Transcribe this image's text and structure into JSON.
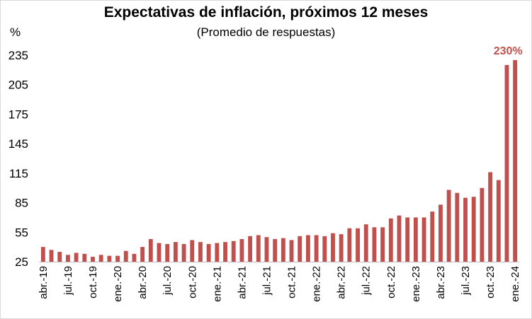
{
  "chart_data": {
    "type": "bar",
    "title": "Expectativas de inflación, próximos 12 meses",
    "subtitle": "(Promedio de respuestas)",
    "ylabel": "%",
    "ylim": [
      25,
      235
    ],
    "yticks": [
      25,
      55,
      85,
      115,
      145,
      175,
      205,
      235
    ],
    "grid": false,
    "bar_color": "#C0504D",
    "annotation": {
      "text": "230%",
      "color": "#C0504D"
    },
    "x_tick_labels": [
      "abr.-19",
      "jul.-19",
      "oct.-19",
      "ene.-20",
      "abr.-20",
      "jul.-20",
      "oct.-20",
      "ene.-21",
      "abr.-21",
      "jul.-21",
      "oct.-21",
      "ene.-22",
      "abr.-22",
      "jul.-22",
      "oct.-22",
      "ene.-23",
      "abr.-23",
      "jul.-23",
      "oct.-23",
      "ene.-24"
    ],
    "categories": [
      "abr.-19",
      "may.-19",
      "jun.-19",
      "jul.-19",
      "ago.-19",
      "sep.-19",
      "oct.-19",
      "nov.-19",
      "dic.-19",
      "ene.-20",
      "feb.-20",
      "mar.-20",
      "abr.-20",
      "may.-20",
      "jun.-20",
      "jul.-20",
      "ago.-20",
      "sep.-20",
      "oct.-20",
      "nov.-20",
      "dic.-20",
      "ene.-21",
      "feb.-21",
      "mar.-21",
      "abr.-21",
      "may.-21",
      "jun.-21",
      "jul.-21",
      "ago.-21",
      "sep.-21",
      "oct.-21",
      "nov.-21",
      "dic.-21",
      "ene.-22",
      "feb.-22",
      "mar.-22",
      "abr.-22",
      "may.-22",
      "jun.-22",
      "jul.-22",
      "ago.-22",
      "sep.-22",
      "oct.-22",
      "nov.-22",
      "dic.-22",
      "ene.-23",
      "feb.-23",
      "mar.-23",
      "abr.-23",
      "may.-23",
      "jun.-23",
      "jul.-23",
      "ago.-23",
      "sep.-23",
      "oct.-23",
      "nov.-23",
      "dic.-23",
      "ene.-24"
    ],
    "values": [
      40,
      37,
      35,
      32,
      34,
      33,
      30,
      32,
      31,
      31,
      36,
      33,
      40,
      48,
      44,
      43,
      45,
      43,
      47,
      45,
      43,
      44,
      45,
      46,
      48,
      51,
      52,
      50,
      48,
      49,
      47,
      51,
      52,
      52,
      51,
      54,
      53,
      59,
      59,
      63,
      60,
      60,
      69,
      72,
      70,
      70,
      70,
      76,
      83,
      98,
      95,
      90,
      91,
      100,
      116,
      108,
      225,
      230
    ]
  }
}
